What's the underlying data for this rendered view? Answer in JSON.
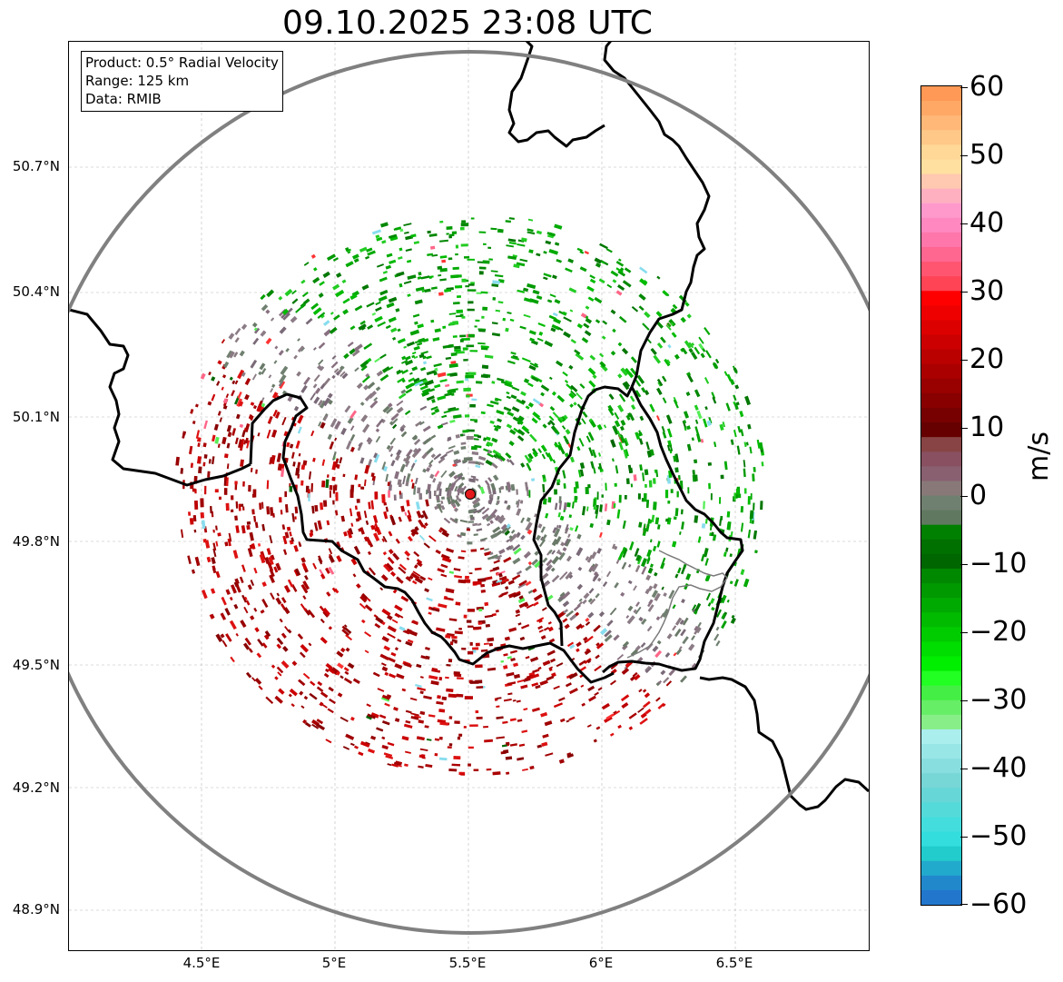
{
  "title": "09.10.2025 23:08 UTC",
  "info": {
    "product": "Product: 0.5° Radial Velocity",
    "range": "Range: 125 km",
    "data": "Data: RMIB"
  },
  "axes": {
    "lat_ticks": [
      "50.7°N",
      "50.4°N",
      "50.1°N",
      "49.8°N",
      "49.5°N",
      "49.2°N",
      "48.9°N"
    ],
    "lon_ticks": [
      "4.5°E",
      "5°E",
      "5.5°E",
      "6°E",
      "6.5°E"
    ]
  },
  "colorbar": {
    "unit": "m/s",
    "ticks": [
      "60",
      "50",
      "40",
      "30",
      "20",
      "10",
      "0",
      "−10",
      "−20",
      "−30",
      "−40",
      "−50",
      "−60"
    ],
    "min": -60,
    "max": 60
  },
  "colors": {
    "range_ring": "#808080",
    "radar_site": "#e31a1c",
    "border": "#000000",
    "grid": "#b0b0b0"
  },
  "map": {
    "radar_lat": 49.914,
    "radar_lon": 5.505,
    "lat_range": [
      48.8,
      50.99
    ],
    "lon_range": [
      4.0,
      7.0
    ]
  }
}
